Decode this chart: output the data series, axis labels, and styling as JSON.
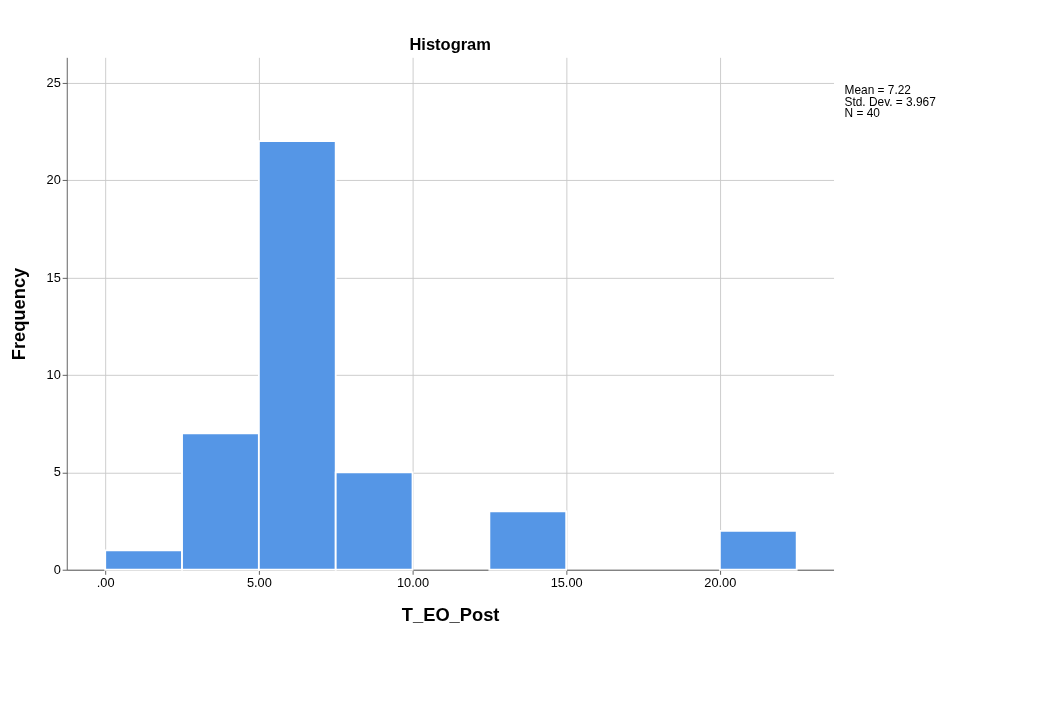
{
  "chart_data": {
    "type": "histogram",
    "title": "Histogram",
    "xlabel": "T_EO_Post",
    "ylabel": "Frequency",
    "bins": [
      0,
      2.5,
      5,
      7.5,
      10,
      12.5,
      15,
      17.5,
      20,
      22.5
    ],
    "values": [
      1,
      7,
      22,
      5,
      0,
      3,
      0,
      0,
      2
    ],
    "color": "#5596e6",
    "xlim": [
      -1.25,
      23.7
    ],
    "ylim": [
      0,
      26.3
    ],
    "xticks": [
      {
        "value": 0,
        "label": ".00"
      },
      {
        "value": 5,
        "label": "5.00"
      },
      {
        "value": 10,
        "label": "10.00"
      },
      {
        "value": 15,
        "label": "15.00"
      },
      {
        "value": 20,
        "label": "20.00"
      }
    ],
    "yticks": [
      0,
      5,
      10,
      15,
      20,
      25
    ],
    "grid": true,
    "annotations": [
      "Mean = 7.22",
      "Std. Dev. = 3.967",
      "N = 40"
    ]
  }
}
